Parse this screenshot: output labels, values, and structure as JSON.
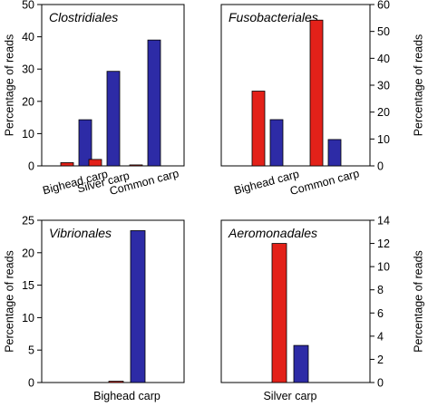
{
  "colors": {
    "series_a": "#e32119",
    "series_b": "#2d2ba6",
    "edge": "#000000"
  },
  "chart_data": [
    {
      "type": "bar",
      "title": "Clostridiales",
      "ylabel": "Percentage of reads",
      "ylabel_side": "left",
      "ylim": [
        0,
        50
      ],
      "yticks": [
        0,
        10,
        20,
        30,
        40,
        50
      ],
      "categories": [
        "Bighead carp",
        "Silver carp",
        "Common carp"
      ],
      "series": [
        {
          "values": [
            1,
            2,
            0.3
          ]
        },
        {
          "values": [
            14.3,
            29.3,
            39
          ]
        }
      ],
      "title_position": "top-left",
      "tick_label_rotation": "angled",
      "grid": false
    },
    {
      "type": "bar",
      "title": "Fusobacteriales",
      "ylabel": "Percentage of reads",
      "ylabel_side": "right",
      "ylim": [
        0,
        60
      ],
      "yticks": [
        0,
        10,
        20,
        30,
        40,
        50,
        60
      ],
      "categories": [
        "Bighead carp",
        "Common carp"
      ],
      "series": [
        {
          "values": [
            27.8,
            54.2
          ]
        },
        {
          "values": [
            17.2,
            9.8
          ]
        }
      ],
      "title_position": "top-left",
      "tick_label_rotation": "angled",
      "grid": false
    },
    {
      "type": "bar",
      "title": "Vibrionales",
      "ylabel": "Percentage of reads",
      "ylabel_side": "left",
      "ylim": [
        0,
        25
      ],
      "yticks": [
        0,
        5,
        10,
        15,
        20,
        25
      ],
      "categories": [
        "Bighead carp"
      ],
      "series": [
        {
          "values": [
            0.2
          ]
        },
        {
          "values": [
            23.4
          ]
        }
      ],
      "title_position": "top-left",
      "tick_label_rotation": "horizontal",
      "grid": false
    },
    {
      "type": "bar",
      "title": "Aeromonadales",
      "ylabel": "Percentage of reads",
      "ylabel_side": "right",
      "ylim": [
        0,
        14
      ],
      "yticks": [
        0,
        2,
        4,
        6,
        8,
        10,
        12,
        14
      ],
      "categories": [
        "Silver carp"
      ],
      "series": [
        {
          "values": [
            12
          ]
        },
        {
          "values": [
            3.2
          ]
        }
      ],
      "title_position": "top-left",
      "tick_label_rotation": "horizontal",
      "grid": false
    }
  ]
}
